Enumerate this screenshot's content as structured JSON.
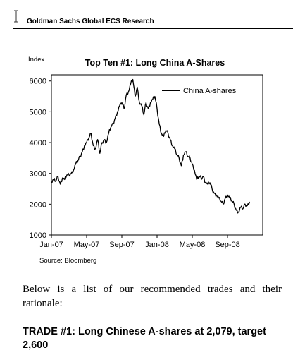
{
  "header": {
    "title": "Goldman Sachs Global ECS Research"
  },
  "chart_data": {
    "type": "line",
    "title": "Top Ten #1: Long China A-Shares",
    "ylabel": "Index",
    "xlabel": "",
    "source": "Source: Bloomberg",
    "ylim": [
      1000,
      6200
    ],
    "y_ticks": [
      1000,
      2000,
      3000,
      4000,
      5000,
      6000
    ],
    "x_ticks": [
      "Jan-07",
      "May-07",
      "Sep-07",
      "Jan-08",
      "May-08",
      "Sep-08"
    ],
    "xlim_months": [
      0,
      24
    ],
    "grid": false,
    "legend_position": "top-right",
    "series": [
      {
        "name": "China A-shares",
        "color": "#000000",
        "x_months": [
          0,
          0.25,
          0.5,
          0.75,
          1,
          1.25,
          1.5,
          1.75,
          2,
          2.25,
          2.5,
          2.75,
          3,
          3.25,
          3.5,
          3.75,
          4,
          4.25,
          4.5,
          4.75,
          5,
          5.25,
          5.5,
          5.75,
          6,
          6.25,
          6.5,
          6.75,
          7,
          7.25,
          7.5,
          7.75,
          8,
          8.25,
          8.5,
          8.75,
          9,
          9.25,
          9.5,
          9.75,
          10,
          10.25,
          10.5,
          10.75,
          11,
          11.25,
          11.5,
          11.75,
          12,
          12.25,
          12.5,
          12.75,
          13,
          13.25,
          13.5,
          13.75,
          14,
          14.25,
          14.5,
          14.75,
          15,
          15.25,
          15.5,
          15.75,
          16,
          16.25,
          16.5,
          16.75,
          17,
          17.25,
          17.5,
          17.75,
          18,
          18.25,
          18.5,
          18.75,
          19,
          19.25,
          19.5,
          19.75,
          20,
          20.25,
          20.5,
          20.75,
          21,
          21.25,
          21.5,
          21.75,
          22,
          22.25,
          22.5
        ],
        "values": [
          2700,
          2800,
          2750,
          2900,
          2650,
          2850,
          2800,
          2950,
          2950,
          3000,
          3100,
          3300,
          3400,
          3550,
          3700,
          3900,
          4000,
          4150,
          4300,
          3900,
          3800,
          4100,
          3650,
          4000,
          4100,
          4000,
          4300,
          4500,
          4600,
          4800,
          5000,
          5200,
          5300,
          5100,
          5550,
          5650,
          5900,
          6050,
          5500,
          5800,
          5300,
          5200,
          4900,
          5300,
          5100,
          5300,
          5400,
          5500,
          5100,
          4600,
          4300,
          4200,
          4400,
          4300,
          4100,
          3900,
          3800,
          3600,
          3500,
          3250,
          3600,
          3700,
          3550,
          3500,
          3300,
          3100,
          2800,
          2900,
          2850,
          2900,
          2700,
          2650,
          2700,
          2500,
          2350,
          2300,
          2200,
          2100,
          2000,
          2200,
          2300,
          2200,
          2100,
          2000,
          1800,
          1750,
          1900,
          1850,
          2000,
          1950,
          2079
        ]
      }
    ]
  },
  "body": {
    "paragraph": "Below is a list of our recommended trades and their rationale:",
    "trade_heading": "TRADE #1: Long Chinese A-shares at 2,079, target 2,600"
  }
}
